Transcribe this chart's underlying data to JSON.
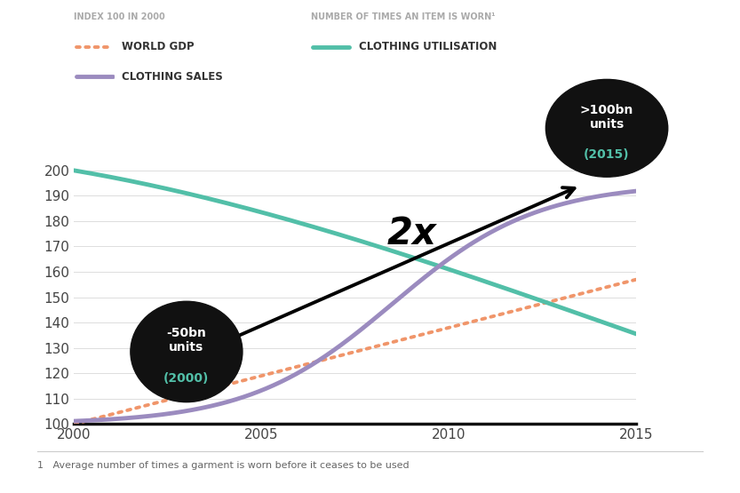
{
  "legend_label1": "INDEX 100 IN 2000",
  "legend_label2": "NUMBER OF TIMES AN ITEM IS WORN¹",
  "series_gdp_label": "WORLD GDP",
  "series_util_label": "CLOTHING UTILISATION",
  "series_sales_label": "CLOTHING SALES",
  "gdp_color": "#F0956A",
  "util_color": "#52BFA8",
  "sales_color": "#9B8BBF",
  "background_color": "#FFFFFF",
  "xlim": [
    2000,
    2015
  ],
  "ylim": [
    100,
    205
  ],
  "yticks": [
    100,
    110,
    120,
    130,
    140,
    150,
    160,
    170,
    180,
    190,
    200
  ],
  "xticks": [
    2000,
    2005,
    2010,
    2015
  ],
  "annotation_start_main": "-50bn\nunits",
  "annotation_start_year": "(2000)",
  "annotation_end_main": ">100bn\nunits",
  "annotation_end_year": "(2015)",
  "annotation_mid_text": "2x",
  "bubble_color": "#111111",
  "bubble_text_color": "#FFFFFF",
  "bubble_year_color": "#52BFA8",
  "footnote": "1   Average number of times a garment is worn before it ceases to be used"
}
